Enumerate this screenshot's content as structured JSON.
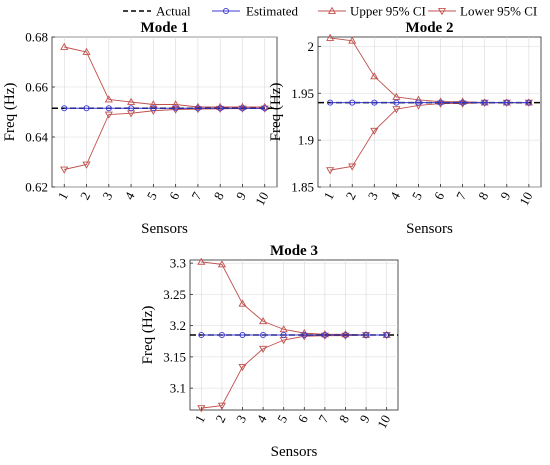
{
  "legend": {
    "entries": [
      {
        "label": "Actual",
        "color": "#000000",
        "style": "dashed",
        "marker": "none"
      },
      {
        "label": "Estimated",
        "color": "#3b3bd6",
        "style": "solid",
        "marker": "circle"
      },
      {
        "label": "Upper 95% CI",
        "color": "#c0504d",
        "style": "solid",
        "marker": "triangle-up"
      },
      {
        "label": "Lower 95% CI",
        "color": "#c0504d",
        "style": "solid",
        "marker": "triangle-down"
      }
    ],
    "placement": "top"
  },
  "chart_data": [
    {
      "type": "line",
      "title": "Mode 1",
      "xlabel": "Sensors",
      "ylabel": "Freq (Hz)",
      "x": [
        1,
        2,
        3,
        4,
        5,
        6,
        7,
        8,
        9,
        10
      ],
      "xticks": [
        "1",
        "2",
        "3",
        "4",
        "5",
        "6",
        "7",
        "8",
        "9",
        "10"
      ],
      "ylim": [
        0.62,
        0.68
      ],
      "yticks": [
        "0.62",
        "0.64",
        "0.66",
        "0.68"
      ],
      "yticks_values": [
        0.62,
        0.64,
        0.66,
        0.68
      ],
      "grid": true,
      "actual": 0.6515,
      "series": [
        {
          "name": "Estimated",
          "values": [
            0.6515,
            0.6515,
            0.6515,
            0.6515,
            0.6515,
            0.6515,
            0.6515,
            0.6515,
            0.6515,
            0.6515
          ]
        },
        {
          "name": "Upper 95% CI",
          "values": [
            0.676,
            0.674,
            0.655,
            0.654,
            0.653,
            0.653,
            0.652,
            0.652,
            0.652,
            0.652
          ]
        },
        {
          "name": "Lower 95% CI",
          "values": [
            0.627,
            0.629,
            0.649,
            0.6495,
            0.6505,
            0.651,
            0.6512,
            0.6513,
            0.6514,
            0.6514
          ]
        }
      ]
    },
    {
      "type": "line",
      "title": "Mode 2",
      "xlabel": "Sensors",
      "ylabel": "Freq (Hz)",
      "x": [
        1,
        2,
        3,
        4,
        5,
        6,
        7,
        8,
        9,
        10
      ],
      "xticks": [
        "1",
        "2",
        "3",
        "4",
        "5",
        "6",
        "7",
        "8",
        "9",
        "10"
      ],
      "ylim": [
        1.85,
        2.01
      ],
      "yticks": [
        "1.85",
        "1.9",
        "1.95",
        "2"
      ],
      "yticks_values": [
        1.85,
        1.9,
        1.95,
        2.0
      ],
      "grid": true,
      "actual": 1.94,
      "series": [
        {
          "name": "Estimated",
          "values": [
            1.94,
            1.94,
            1.94,
            1.94,
            1.94,
            1.94,
            1.94,
            1.94,
            1.94,
            1.94
          ]
        },
        {
          "name": "Upper 95% CI",
          "values": [
            2.009,
            2.006,
            1.968,
            1.946,
            1.943,
            1.941,
            1.941,
            1.94,
            1.94,
            1.94
          ]
        },
        {
          "name": "Lower 95% CI",
          "values": [
            1.868,
            1.872,
            1.91,
            1.933,
            1.937,
            1.939,
            1.939,
            1.94,
            1.94,
            1.94
          ]
        }
      ]
    },
    {
      "type": "line",
      "title": "Mode 3",
      "xlabel": "Sensors",
      "ylabel": "Freq (Hz)",
      "x": [
        1,
        2,
        3,
        4,
        5,
        6,
        7,
        8,
        9,
        10
      ],
      "xticks": [
        "1",
        "2",
        "3",
        "4",
        "5",
        "6",
        "7",
        "8",
        "9",
        "10"
      ],
      "ylim": [
        3.065,
        3.305
      ],
      "yticks": [
        "3.1",
        "3.15",
        "3.2",
        "3.25",
        "3.3"
      ],
      "yticks_values": [
        3.1,
        3.15,
        3.2,
        3.25,
        3.3
      ],
      "grid": true,
      "actual": 3.185,
      "series": [
        {
          "name": "Estimated",
          "values": [
            3.185,
            3.185,
            3.185,
            3.185,
            3.185,
            3.185,
            3.185,
            3.185,
            3.185,
            3.185
          ]
        },
        {
          "name": "Upper 95% CI",
          "values": [
            3.302,
            3.298,
            3.235,
            3.207,
            3.194,
            3.188,
            3.186,
            3.186,
            3.185,
            3.185
          ]
        },
        {
          "name": "Lower 95% CI",
          "values": [
            3.068,
            3.072,
            3.134,
            3.163,
            3.177,
            3.183,
            3.184,
            3.184,
            3.185,
            3.185
          ]
        }
      ]
    }
  ]
}
